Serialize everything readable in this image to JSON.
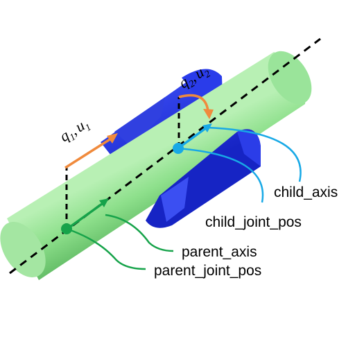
{
  "labels": {
    "child_axis": "child_axis",
    "child_joint_pos": "child_joint_pos",
    "parent_axis": "parent_axis",
    "parent_joint_pos": "parent_joint_pos"
  },
  "math": {
    "q1u1": {
      "q": "q",
      "q_sub": "1",
      "sep": ",",
      "u": "u",
      "u_sub": "1"
    },
    "q2u2": {
      "q": "q",
      "q_sub": "2",
      "sep": ",",
      "u": "u",
      "u_sub": "2"
    }
  },
  "colors": {
    "parent_rod": "#8ee08c",
    "parent_rod_dark": "#5fbd63",
    "child_body": "#2436e8",
    "child_body_dark": "#1a22b8",
    "parent_marker": "#16a34a",
    "child_marker": "#18a9e6",
    "motion_arrow": "#f08a3c",
    "axis_line": "#000000"
  }
}
